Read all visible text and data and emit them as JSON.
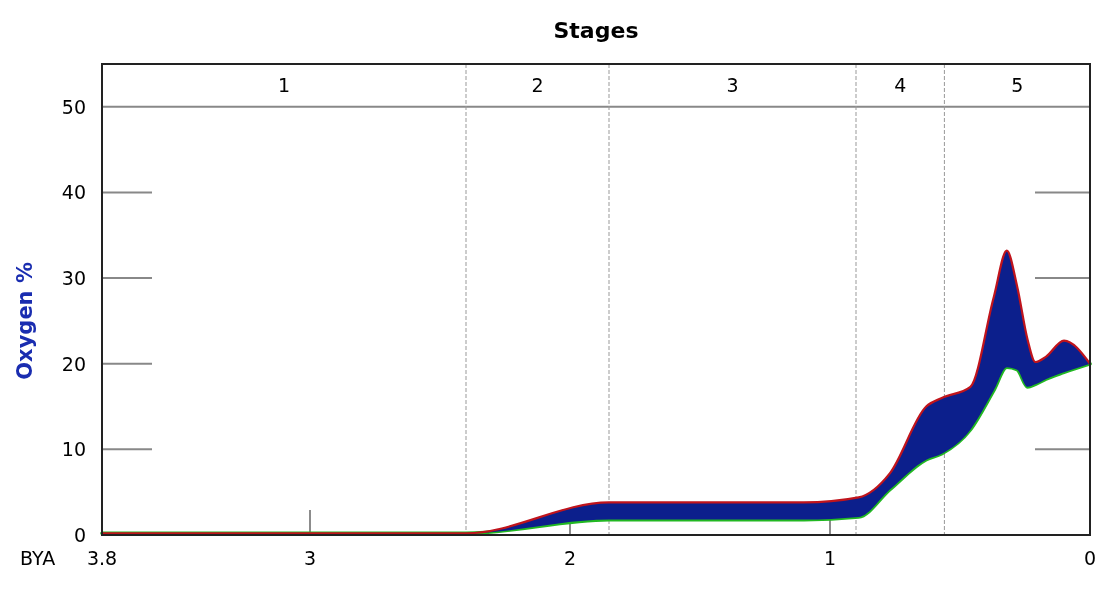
{
  "chart_data": {
    "type": "line",
    "title": "Stages",
    "xlabel": "BYA",
    "ylabel": "Oxygen %",
    "x": [
      3.8,
      2.4,
      1.85,
      1.1,
      0.89,
      0.77,
      0.63,
      0.57,
      0.46,
      0.37,
      0.32,
      0.28,
      0.24,
      0.21,
      0.17,
      0.1,
      0
    ],
    "series": [
      {
        "color": "#c0141c",
        "values": [
          0.2,
          0.2,
          3.8,
          3.8,
          4.4,
          7.2,
          15.0,
          16.0,
          17.3,
          27.8,
          33.2,
          29.0,
          22.8,
          20.2,
          20.8,
          22.7,
          20.0
        ],
        "upper": [
          0.2,
          0.2,
          3.8,
          3.8,
          4.4,
          7.2,
          15.0,
          16.0,
          17.3,
          27.8,
          33.2,
          29.0,
          22.8,
          20.2,
          20.8,
          22.7,
          20.0
        ],
        "lower": [
          0.2,
          0.2,
          1.8,
          1.8,
          2.1,
          5.3,
          8.8,
          9.5,
          12.3,
          16.9,
          19.6,
          19.3,
          17.3,
          17.6,
          18.2,
          19.0,
          20.0
        ]
      },
      {
        "color": "#22b822",
        "values": [
          0.2,
          0.2,
          1.8,
          1.8,
          2.1,
          5.3,
          8.8,
          9.5,
          12.3,
          16.9,
          19.6,
          19.3,
          17.3,
          17.6,
          18.2,
          19.0,
          20.0
        ]
      }
    ],
    "xlim": [
      3.8,
      0
    ],
    "xticks": [
      3.8,
      3,
      2,
      1,
      0
    ],
    "ylim": [
      0,
      55
    ],
    "yticks": [
      0,
      10,
      20,
      30,
      40,
      50
    ],
    "ref_lines": [
      {
        "axis": "y",
        "value": 50,
        "color": "#888888"
      },
      {
        "axis": "x",
        "value": 2.4,
        "color": "#999999",
        "line_style": "dashed"
      },
      {
        "axis": "x",
        "value": 1.85,
        "color": "#999999",
        "line_style": "dashed"
      },
      {
        "axis": "x",
        "value": 0.9,
        "color": "#999999",
        "line_style": "dashed"
      },
      {
        "axis": "x",
        "value": 0.56,
        "color": "#999999",
        "line_style": "dashed"
      }
    ],
    "annotations": [
      "1",
      "2",
      "3",
      "4",
      "5"
    ]
  }
}
